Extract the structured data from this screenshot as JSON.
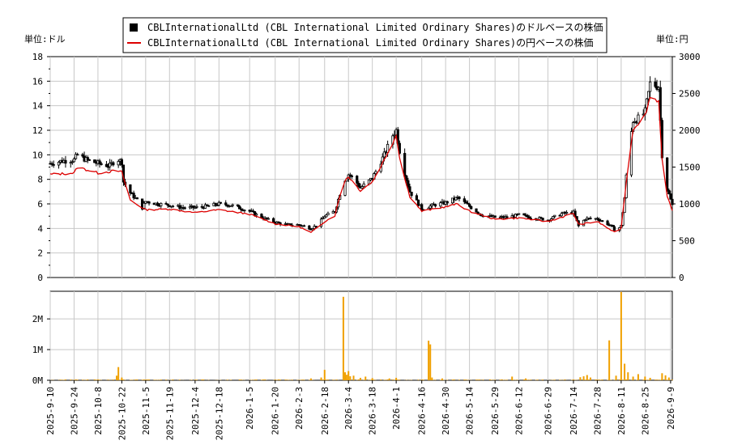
{
  "legend": {
    "usd_label": "CBLInternationalLtd (CBL International Limited Ordinary Shares)のドルベースの株価",
    "jpy_label": "CBLInternationalLtd (CBL International Limited Ordinary Shares)の円ベースの株価"
  },
  "axes": {
    "left_unit": "単位:ドル",
    "right_unit": "単位:円"
  },
  "colors": {
    "candle": "#000000",
    "jpy_line": "#dd0000",
    "volume": "#f0a000",
    "grid": "#c8c8c8"
  },
  "chart_data": [
    {
      "type": "line",
      "title": "",
      "left_axis": {
        "label": "単位:ドル",
        "range": [
          0,
          18
        ],
        "ticks": [
          0,
          2,
          4,
          6,
          8,
          10,
          12,
          14,
          16,
          18
        ]
      },
      "right_axis": {
        "label": "単位:円",
        "range": [
          0,
          3000
        ],
        "ticks": [
          0,
          500,
          1000,
          1500,
          2000,
          2500,
          3000
        ]
      },
      "x_range": [
        "2025-09-10",
        "2026-09-10"
      ],
      "x_ticks": [
        "2025-9-10",
        "2025-9-24",
        "2025-10-8",
        "2025-10-22",
        "2025-11-5",
        "2025-11-19",
        "2025-12-4",
        "2025-12-18",
        "2026-1-5",
        "2026-1-20",
        "2026-2-3",
        "2026-2-18",
        "2026-3-4",
        "2026-3-18",
        "2026-4-1",
        "2026-4-16",
        "2026-4-30",
        "2026-5-14",
        "2026-5-29",
        "2026-6-12",
        "2026-6-29",
        "2026-7-14",
        "2026-7-28",
        "2026-8-11",
        "2026-8-25",
        "2026-9-9"
      ],
      "grid": true,
      "legend_position": "top-center",
      "series": [
        {
          "name": "CBLInternationalLtd (CBL International Limited Ordinary Shares)のドルベースの株価",
          "style": "candlestick",
          "points": [
            [
              "2025-09-10",
              9.3
            ],
            [
              "2025-09-17",
              9.5
            ],
            [
              "2025-09-24",
              9.6
            ],
            [
              "2025-09-26",
              10.0
            ],
            [
              "2025-10-01",
              9.6
            ],
            [
              "2025-10-08",
              9.3
            ],
            [
              "2025-10-15",
              9.1
            ],
            [
              "2025-10-19",
              9.7
            ],
            [
              "2025-10-22",
              9.4
            ],
            [
              "2025-10-23",
              7.8
            ],
            [
              "2025-10-27",
              6.9
            ],
            [
              "2025-10-31",
              6.3
            ],
            [
              "2025-11-03",
              5.7
            ],
            [
              "2025-11-05",
              6.2
            ],
            [
              "2025-11-12",
              6.0
            ],
            [
              "2025-11-19",
              5.9
            ],
            [
              "2025-11-26",
              5.7
            ],
            [
              "2025-12-04",
              5.7
            ],
            [
              "2025-12-11",
              5.8
            ],
            [
              "2025-12-18",
              6.0
            ],
            [
              "2025-12-25",
              5.9
            ],
            [
              "2026-01-05",
              5.4
            ],
            [
              "2026-01-12",
              4.9
            ],
            [
              "2026-01-20",
              4.5
            ],
            [
              "2026-01-27",
              4.3
            ],
            [
              "2026-02-03",
              4.3
            ],
            [
              "2026-02-10",
              4.0
            ],
            [
              "2026-02-14",
              4.3
            ],
            [
              "2026-02-18",
              5.0
            ],
            [
              "2026-02-24",
              5.4
            ],
            [
              "2026-03-01",
              7.8
            ],
            [
              "2026-03-04",
              8.4
            ],
            [
              "2026-03-07",
              8.1
            ],
            [
              "2026-03-11",
              7.3
            ],
            [
              "2026-03-18",
              8.1
            ],
            [
              "2026-03-25",
              10.0
            ],
            [
              "2026-03-30",
              11.6
            ],
            [
              "2026-04-01",
              12.0
            ],
            [
              "2026-04-04",
              9.5
            ],
            [
              "2026-04-09",
              7.0
            ],
            [
              "2026-04-16",
              5.6
            ],
            [
              "2026-04-23",
              5.9
            ],
            [
              "2026-04-30",
              6.1
            ],
            [
              "2026-05-07",
              6.5
            ],
            [
              "2026-05-14",
              5.8
            ],
            [
              "2026-05-21",
              5.1
            ],
            [
              "2026-05-29",
              4.9
            ],
            [
              "2026-06-05",
              4.9
            ],
            [
              "2026-06-12",
              5.1
            ],
            [
              "2026-06-19",
              4.9
            ],
            [
              "2026-06-29",
              4.7
            ],
            [
              "2026-07-07",
              5.2
            ],
            [
              "2026-07-14",
              5.3
            ],
            [
              "2026-07-17",
              4.2
            ],
            [
              "2026-07-21",
              4.8
            ],
            [
              "2026-07-28",
              4.8
            ],
            [
              "2026-08-04",
              4.3
            ],
            [
              "2026-08-08",
              3.8
            ],
            [
              "2026-08-11",
              4.2
            ],
            [
              "2026-08-13",
              6.5
            ],
            [
              "2026-08-15",
              10.0
            ],
            [
              "2026-08-18",
              12.8
            ],
            [
              "2026-08-22",
              13.0
            ],
            [
              "2026-08-25",
              13.5
            ],
            [
              "2026-08-28",
              15.8
            ],
            [
              "2026-09-02",
              15.6
            ],
            [
              "2026-09-04",
              10.0
            ],
            [
              "2026-09-07",
              7.2
            ],
            [
              "2026-09-10",
              5.9
            ]
          ]
        },
        {
          "name": "CBLInternationalLtd (CBL International Limited Ordinary Shares)の円ベースの株価",
          "style": "line",
          "points": [
            [
              "2025-09-10",
              1400
            ],
            [
              "2025-09-24",
              1420
            ],
            [
              "2025-09-26",
              1500
            ],
            [
              "2025-10-08",
              1420
            ],
            [
              "2025-10-19",
              1450
            ],
            [
              "2025-10-22",
              1430
            ],
            [
              "2025-10-27",
              1050
            ],
            [
              "2025-11-05",
              920
            ],
            [
              "2025-11-19",
              930
            ],
            [
              "2025-12-04",
              880
            ],
            [
              "2025-12-18",
              920
            ],
            [
              "2026-01-05",
              860
            ],
            [
              "2026-01-20",
              730
            ],
            [
              "2026-02-03",
              690
            ],
            [
              "2026-02-10",
              610
            ],
            [
              "2026-02-18",
              760
            ],
            [
              "2026-02-24",
              840
            ],
            [
              "2026-03-01",
              1300
            ],
            [
              "2026-03-04",
              1370
            ],
            [
              "2026-03-11",
              1180
            ],
            [
              "2026-03-18",
              1300
            ],
            [
              "2026-03-25",
              1600
            ],
            [
              "2026-04-01",
              1930
            ],
            [
              "2026-04-04",
              1500
            ],
            [
              "2026-04-09",
              1100
            ],
            [
              "2026-04-16",
              900
            ],
            [
              "2026-04-30",
              960
            ],
            [
              "2026-05-07",
              1000
            ],
            [
              "2026-05-14",
              900
            ],
            [
              "2026-05-29",
              790
            ],
            [
              "2026-06-12",
              810
            ],
            [
              "2026-06-29",
              760
            ],
            [
              "2026-07-14",
              870
            ],
            [
              "2026-07-17",
              720
            ],
            [
              "2026-07-28",
              760
            ],
            [
              "2026-08-08",
              600
            ],
            [
              "2026-08-11",
              680
            ],
            [
              "2026-08-15",
              1500
            ],
            [
              "2026-08-18",
              2020
            ],
            [
              "2026-08-25",
              2200
            ],
            [
              "2026-08-28",
              2450
            ],
            [
              "2026-09-02",
              2400
            ],
            [
              "2026-09-04",
              1600
            ],
            [
              "2026-09-07",
              1100
            ],
            [
              "2026-09-10",
              900
            ]
          ]
        }
      ]
    },
    {
      "type": "bar",
      "title": "",
      "y_range": [
        0,
        2900000
      ],
      "y_ticks": [
        "0M",
        "1M",
        "2M"
      ],
      "x_range": [
        "2025-09-10",
        "2026-09-10"
      ],
      "grid": true,
      "series": [
        {
          "name": "",
          "points": [
            [
              "2025-10-19",
              150000
            ],
            [
              "2025-10-20",
              430000
            ],
            [
              "2025-10-22",
              90000
            ],
            [
              "2026-02-10",
              60000
            ],
            [
              "2026-02-16",
              90000
            ],
            [
              "2026-02-18",
              340000
            ],
            [
              "2026-03-01",
              2720000
            ],
            [
              "2026-03-02",
              260000
            ],
            [
              "2026-03-03",
              180000
            ],
            [
              "2026-03-04",
              300000
            ],
            [
              "2026-03-05",
              130000
            ],
            [
              "2026-03-07",
              150000
            ],
            [
              "2026-03-11",
              80000
            ],
            [
              "2026-03-14",
              120000
            ],
            [
              "2026-03-18",
              70000
            ],
            [
              "2026-03-28",
              60000
            ],
            [
              "2026-04-01",
              80000
            ],
            [
              "2026-04-20",
              1290000
            ],
            [
              "2026-04-21",
              1170000
            ],
            [
              "2026-04-22",
              90000
            ],
            [
              "2026-04-28",
              60000
            ],
            [
              "2026-06-08",
              120000
            ],
            [
              "2026-06-16",
              60000
            ],
            [
              "2026-07-18",
              100000
            ],
            [
              "2026-07-20",
              130000
            ],
            [
              "2026-07-22",
              170000
            ],
            [
              "2026-07-24",
              90000
            ],
            [
              "2026-08-04",
              1300000
            ],
            [
              "2026-08-08",
              150000
            ],
            [
              "2026-08-11",
              2880000
            ],
            [
              "2026-08-13",
              540000
            ],
            [
              "2026-08-15",
              260000
            ],
            [
              "2026-08-18",
              120000
            ],
            [
              "2026-08-21",
              200000
            ],
            [
              "2026-08-25",
              120000
            ],
            [
              "2026-08-28",
              80000
            ],
            [
              "2026-09-04",
              230000
            ],
            [
              "2026-09-06",
              160000
            ],
            [
              "2026-09-08",
              90000
            ]
          ]
        }
      ]
    }
  ]
}
